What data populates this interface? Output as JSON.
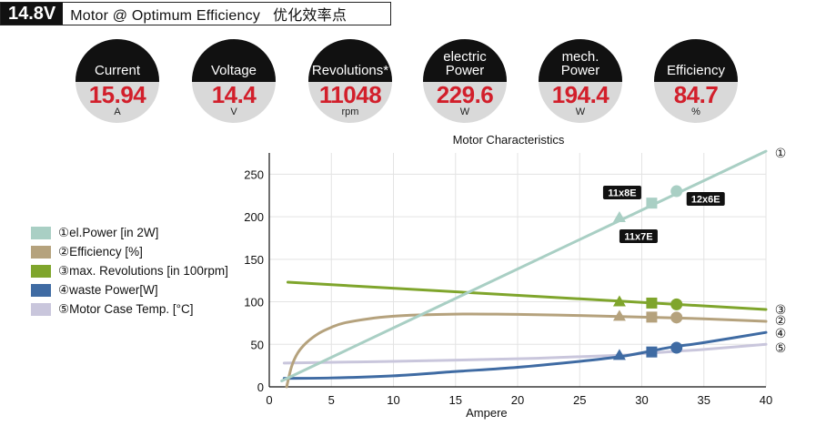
{
  "header": {
    "voltage": "14.8V",
    "title": "Motor @ Optimum Efficiency",
    "title_cn": "优化效率点"
  },
  "gauges": [
    {
      "label": "Current",
      "value": "15.94",
      "unit": "A"
    },
    {
      "label": "Voltage",
      "value": "14.4",
      "unit": "V"
    },
    {
      "label": "Revolutions*",
      "value": "11048",
      "unit": "rpm"
    },
    {
      "label": "electric Power",
      "value": "229.6",
      "unit": "W"
    },
    {
      "label": "mech. Power",
      "value": "194.4",
      "unit": "W"
    },
    {
      "label": "Efficiency",
      "value": "84.7",
      "unit": "%"
    }
  ],
  "legend": [
    {
      "label": "①el.Power [in 2W]",
      "color": "#a9cfc4"
    },
    {
      "label": "②Efficiency [%]",
      "color": "#b5a27d"
    },
    {
      "label": "③max. Revolutions [in 100rpm]",
      "color": "#7fa52c"
    },
    {
      "label": "④waste Power[W]",
      "color": "#3f6ba3"
    },
    {
      "label": "⑤Motor Case Temp. [°C]",
      "color": "#c9c6dc"
    }
  ],
  "chart_data": {
    "type": "line",
    "title": "Motor Characteristics",
    "xlabel": "Ampere",
    "ylabel": "",
    "xlim": [
      0,
      40
    ],
    "ylim": [
      0,
      275
    ],
    "xticks": [
      0,
      5,
      10,
      15,
      20,
      25,
      30,
      35,
      40
    ],
    "yticks": [
      0,
      50,
      100,
      150,
      200,
      250
    ],
    "grid": true,
    "series": [
      {
        "id": "1",
        "name": "el.Power [in 2W]",
        "color": "#a9cfc4",
        "x": [
          1,
          40
        ],
        "y": [
          7,
          277
        ]
      },
      {
        "id": "2",
        "name": "Efficiency [%]",
        "color": "#b5a27d",
        "x": [
          1.4,
          1.8,
          2.3,
          3,
          4,
          5,
          6,
          8,
          10,
          12,
          15,
          18,
          20,
          25,
          30,
          35,
          40
        ],
        "y": [
          0,
          24,
          40,
          52,
          63,
          70,
          75,
          80,
          83,
          84.5,
          85.5,
          85.5,
          85.2,
          83.8,
          82,
          80,
          77
        ]
      },
      {
        "id": "3",
        "name": "max. Revolutions [in 100rpm]",
        "color": "#7fa52c",
        "x": [
          1.5,
          40
        ],
        "y": [
          123,
          91
        ]
      },
      {
        "id": "4",
        "name": "waste Power [W]",
        "color": "#3f6ba3",
        "x": [
          1.2,
          5,
          10,
          15,
          20,
          25,
          28,
          30,
          32.5,
          35,
          40
        ],
        "y": [
          10,
          10.5,
          13,
          18,
          23,
          30,
          35,
          40,
          47,
          52,
          64
        ]
      },
      {
        "id": "5",
        "name": "Motor Case Temp. [°C]",
        "color": "#c9c6dc",
        "x": [
          1.2,
          10,
          20,
          28,
          30,
          33,
          35,
          40
        ],
        "y": [
          28,
          30,
          33,
          37,
          39,
          42,
          44,
          50
        ]
      }
    ],
    "markers": [
      {
        "series": "1",
        "shape": "triangle",
        "x": 28.2,
        "y": 199
      },
      {
        "series": "1",
        "shape": "square",
        "x": 30.8,
        "y": 216
      },
      {
        "series": "1",
        "shape": "circle",
        "x": 32.8,
        "y": 230
      },
      {
        "series": "3",
        "shape": "triangle",
        "x": 28.2,
        "y": 100
      },
      {
        "series": "3",
        "shape": "square",
        "x": 30.8,
        "y": 98.5
      },
      {
        "series": "3",
        "shape": "circle",
        "x": 32.8,
        "y": 97
      },
      {
        "series": "2",
        "shape": "triangle",
        "x": 28.2,
        "y": 83
      },
      {
        "series": "2",
        "shape": "square",
        "x": 30.8,
        "y": 82
      },
      {
        "series": "2",
        "shape": "circle",
        "x": 32.8,
        "y": 81.5
      },
      {
        "series": "4",
        "shape": "triangle",
        "x": 28.2,
        "y": 37
      },
      {
        "series": "4",
        "shape": "square",
        "x": 30.8,
        "y": 41
      },
      {
        "series": "4",
        "shape": "circle",
        "x": 32.8,
        "y": 46
      }
    ],
    "annotations": [
      {
        "text": "11x8E",
        "x": 28.2,
        "y": 199,
        "anchor": "above"
      },
      {
        "text": "11x7E",
        "x": 28.2,
        "y": 199,
        "anchor": "below"
      },
      {
        "text": "12x6E",
        "x": 32.8,
        "y": 230,
        "anchor": "right"
      }
    ],
    "end_labels": [
      {
        "text": "①",
        "series": "1"
      },
      {
        "text": "③",
        "series": "3"
      },
      {
        "text": "②",
        "series": "2"
      },
      {
        "text": "④",
        "series": "4"
      },
      {
        "text": "⑤",
        "series": "5"
      }
    ]
  }
}
